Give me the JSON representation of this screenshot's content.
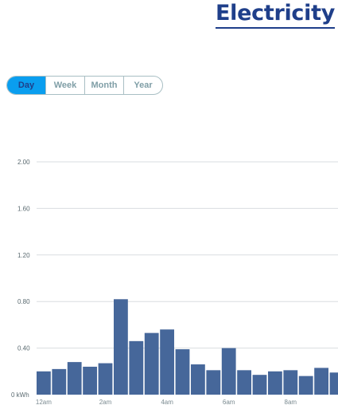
{
  "header": {
    "title": "Electricity"
  },
  "period_tabs": [
    {
      "label": "Day",
      "active": true
    },
    {
      "label": "Week",
      "active": false
    },
    {
      "label": "Month",
      "active": false
    },
    {
      "label": "Year",
      "active": false
    }
  ],
  "colors": {
    "title": "#1f3f8a",
    "active_tab_bg": "#0a9eef",
    "bar": "#46679a",
    "grid": "#d9dde0"
  },
  "chart_data": {
    "type": "bar",
    "ylabel": "",
    "ylim": [
      0,
      2.0
    ],
    "y_ticks": [
      "0 kWh",
      "0.40",
      "0.80",
      "1.20",
      "1.60",
      "2.00"
    ],
    "y_tick_values": [
      0,
      0.4,
      0.8,
      1.2,
      1.6,
      2.0
    ],
    "x_tick_labels": [
      {
        "label": "12am",
        "index": 0
      },
      {
        "label": "2am",
        "index": 4
      },
      {
        "label": "4am",
        "index": 8
      },
      {
        "label": "6am",
        "index": 12
      },
      {
        "label": "8am",
        "index": 16
      }
    ],
    "values": [
      0.2,
      0.22,
      0.28,
      0.24,
      0.27,
      0.82,
      0.46,
      0.53,
      0.56,
      0.39,
      0.26,
      0.21,
      0.4,
      0.21,
      0.17,
      0.2,
      0.21,
      0.16,
      0.23,
      0.19
    ],
    "grid": true
  }
}
